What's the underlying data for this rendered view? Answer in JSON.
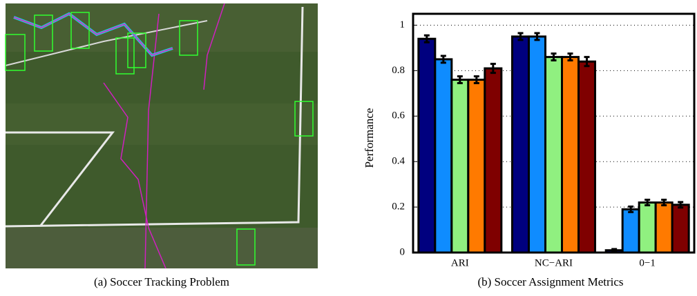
{
  "chart_data": {
    "type": "bar",
    "ylabel": "Performance",
    "categories": [
      "ARI",
      "NC−ARI",
      "0−1"
    ],
    "series": [
      {
        "color": "#00007f",
        "values": [
          0.94,
          0.95,
          0.01
        ],
        "errors": [
          0.015,
          0.015,
          0.005
        ]
      },
      {
        "color": "#0f8cff",
        "values": [
          0.85,
          0.95,
          0.19
        ],
        "errors": [
          0.015,
          0.015,
          0.012
        ]
      },
      {
        "color": "#90f080",
        "values": [
          0.76,
          0.86,
          0.22
        ],
        "errors": [
          0.015,
          0.015,
          0.012
        ]
      },
      {
        "color": "#ff7a00",
        "values": [
          0.76,
          0.86,
          0.22
        ],
        "errors": [
          0.015,
          0.015,
          0.012
        ]
      },
      {
        "color": "#7f0000",
        "values": [
          0.81,
          0.84,
          0.21
        ],
        "errors": [
          0.02,
          0.02,
          0.012
        ]
      }
    ],
    "ylim": [
      0,
      1.05
    ],
    "yticks": [
      0,
      0.2,
      0.4,
      0.6,
      0.8,
      1
    ],
    "grid": true
  },
  "captions": [
    "(a)  Soccer Tracking Problem",
    "(b)  Soccer Assignment Metrics"
  ]
}
